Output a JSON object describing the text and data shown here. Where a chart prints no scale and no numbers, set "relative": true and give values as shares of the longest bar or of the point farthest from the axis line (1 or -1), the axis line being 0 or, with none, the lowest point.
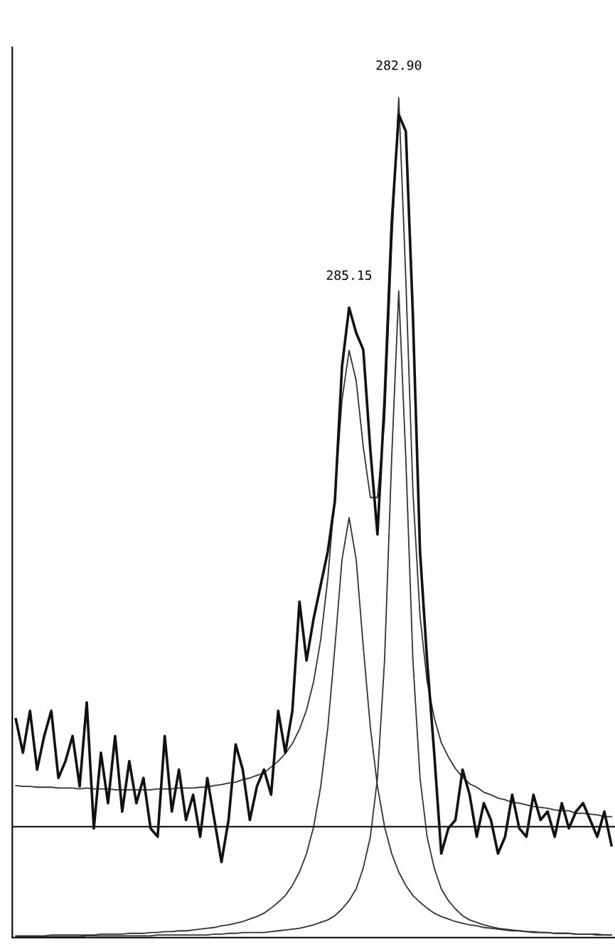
{
  "chart_data": {
    "type": "line",
    "relative": true,
    "legend": false,
    "grid": false,
    "marker": "none",
    "line_style": "solid",
    "categories": [
      null,
      null,
      null,
      null,
      null,
      null,
      null,
      null,
      null,
      null,
      null,
      null,
      null,
      null,
      null,
      null,
      null,
      null,
      null,
      null,
      null,
      null,
      null,
      null,
      null,
      null,
      null,
      null,
      null,
      null,
      null,
      null,
      null,
      null,
      null,
      null,
      null,
      null,
      null,
      null,
      null,
      null,
      null,
      null,
      null,
      null,
      null,
      null,
      null,
      null,
      null,
      null,
      null,
      null,
      null,
      null,
      null,
      null,
      null,
      null,
      null,
      null,
      null,
      null,
      null,
      null,
      null,
      null,
      null,
      null,
      null,
      null,
      null,
      null,
      null,
      null,
      null,
      null,
      null,
      null,
      null,
      null,
      null,
      null,
      null
    ],
    "annotations": [
      "285.15",
      "282.90"
    ],
    "ref_lines": [
      {
        "axis": "y",
        "value": 0.132,
        "color": "#000000"
      }
    ],
    "series": [
      {
        "color": "#111111",
        "values": [
          0.26,
          0.22,
          0.27,
          0.2,
          0.24,
          0.27,
          0.19,
          0.21,
          0.24,
          0.18,
          0.28,
          0.13,
          0.22,
          0.16,
          0.24,
          0.15,
          0.21,
          0.16,
          0.19,
          0.13,
          0.12,
          0.24,
          0.15,
          0.2,
          0.14,
          0.17,
          0.12,
          0.19,
          0.14,
          0.09,
          0.14,
          0.23,
          0.2,
          0.14,
          0.18,
          0.2,
          0.17,
          0.27,
          0.22,
          0.27,
          0.4,
          0.33,
          0.38,
          0.42,
          0.46,
          0.52,
          0.68,
          0.75,
          0.72,
          0.7,
          0.58,
          0.48,
          0.64,
          0.85,
          0.98,
          0.96,
          0.74,
          0.46,
          0.33,
          0.22,
          0.1,
          0.13,
          0.14,
          0.2,
          0.17,
          0.12,
          0.16,
          0.14,
          0.1,
          0.12,
          0.17,
          0.13,
          0.12,
          0.17,
          0.14,
          0.15,
          0.12,
          0.16,
          0.13,
          0.15,
          0.16,
          0.14,
          0.12,
          0.15,
          0.11
        ]
      },
      {
        "color": "#333333",
        "values": [
          0.181,
          0.18,
          0.18,
          0.179,
          0.179,
          0.179,
          0.178,
          0.178,
          0.178,
          0.177,
          0.178,
          0.177,
          0.177,
          0.177,
          0.176,
          0.176,
          0.176,
          0.176,
          0.176,
          0.176,
          0.177,
          0.177,
          0.177,
          0.178,
          0.178,
          0.178,
          0.179,
          0.179,
          0.181,
          0.182,
          0.184,
          0.185,
          0.188,
          0.19,
          0.193,
          0.196,
          0.203,
          0.21,
          0.219,
          0.231,
          0.248,
          0.271,
          0.305,
          0.355,
          0.428,
          0.528,
          0.64,
          0.699,
          0.663,
          0.584,
          0.524,
          0.524,
          0.615,
          0.823,
          1.0,
          0.784,
          0.531,
          0.383,
          0.305,
          0.262,
          0.232,
          0.215,
          0.201,
          0.191,
          0.183,
          0.179,
          0.173,
          0.17,
          0.166,
          0.164,
          0.161,
          0.16,
          0.158,
          0.156,
          0.155,
          0.154,
          0.152,
          0.151,
          0.151,
          0.148,
          0.148,
          0.147,
          0.146,
          0.144,
          0.144
        ]
      },
      {
        "color": "#333333",
        "values": [
          0.002,
          0.002,
          0.002,
          0.002,
          0.002,
          0.003,
          0.003,
          0.003,
          0.003,
          0.003,
          0.003,
          0.003,
          0.004,
          0.004,
          0.004,
          0.004,
          0.005,
          0.005,
          0.005,
          0.006,
          0.006,
          0.007,
          0.007,
          0.008,
          0.008,
          0.009,
          0.01,
          0.011,
          0.012,
          0.014,
          0.015,
          0.017,
          0.019,
          0.022,
          0.025,
          0.029,
          0.035,
          0.042,
          0.05,
          0.062,
          0.078,
          0.1,
          0.132,
          0.18,
          0.25,
          0.346,
          0.45,
          0.5,
          0.45,
          0.346,
          0.25,
          0.18,
          0.132,
          0.1,
          0.078,
          0.062,
          0.05,
          0.042,
          0.035,
          0.029,
          0.025,
          0.022,
          0.019,
          0.017,
          0.015,
          0.014,
          0.012,
          0.011,
          0.01,
          0.009,
          0.008,
          0.008,
          0.007,
          0.007,
          0.006,
          0.006,
          0.005,
          0.005,
          0.005,
          0.004,
          0.004,
          0.004,
          0.004,
          0.003,
          0.003
        ]
      },
      {
        "color": "#333333",
        "values": [
          0.001,
          0.001,
          0.001,
          0.001,
          0.001,
          0.001,
          0.001,
          0.001,
          0.001,
          0.001,
          0.002,
          0.002,
          0.002,
          0.002,
          0.002,
          0.002,
          0.002,
          0.002,
          0.002,
          0.002,
          0.003,
          0.003,
          0.003,
          0.003,
          0.003,
          0.003,
          0.003,
          0.003,
          0.004,
          0.004,
          0.005,
          0.005,
          0.006,
          0.006,
          0.006,
          0.006,
          0.007,
          0.008,
          0.009,
          0.01,
          0.011,
          0.013,
          0.015,
          0.018,
          0.021,
          0.026,
          0.034,
          0.044,
          0.058,
          0.083,
          0.12,
          0.19,
          0.33,
          0.57,
          0.77,
          0.57,
          0.33,
          0.19,
          0.12,
          0.083,
          0.058,
          0.044,
          0.034,
          0.026,
          0.021,
          0.018,
          0.015,
          0.013,
          0.011,
          0.01,
          0.009,
          0.008,
          0.007,
          0.006,
          0.006,
          0.006,
          0.005,
          0.005,
          0.005,
          0.004,
          0.004,
          0.004,
          0.003,
          0.003,
          0.003
        ]
      }
    ]
  }
}
